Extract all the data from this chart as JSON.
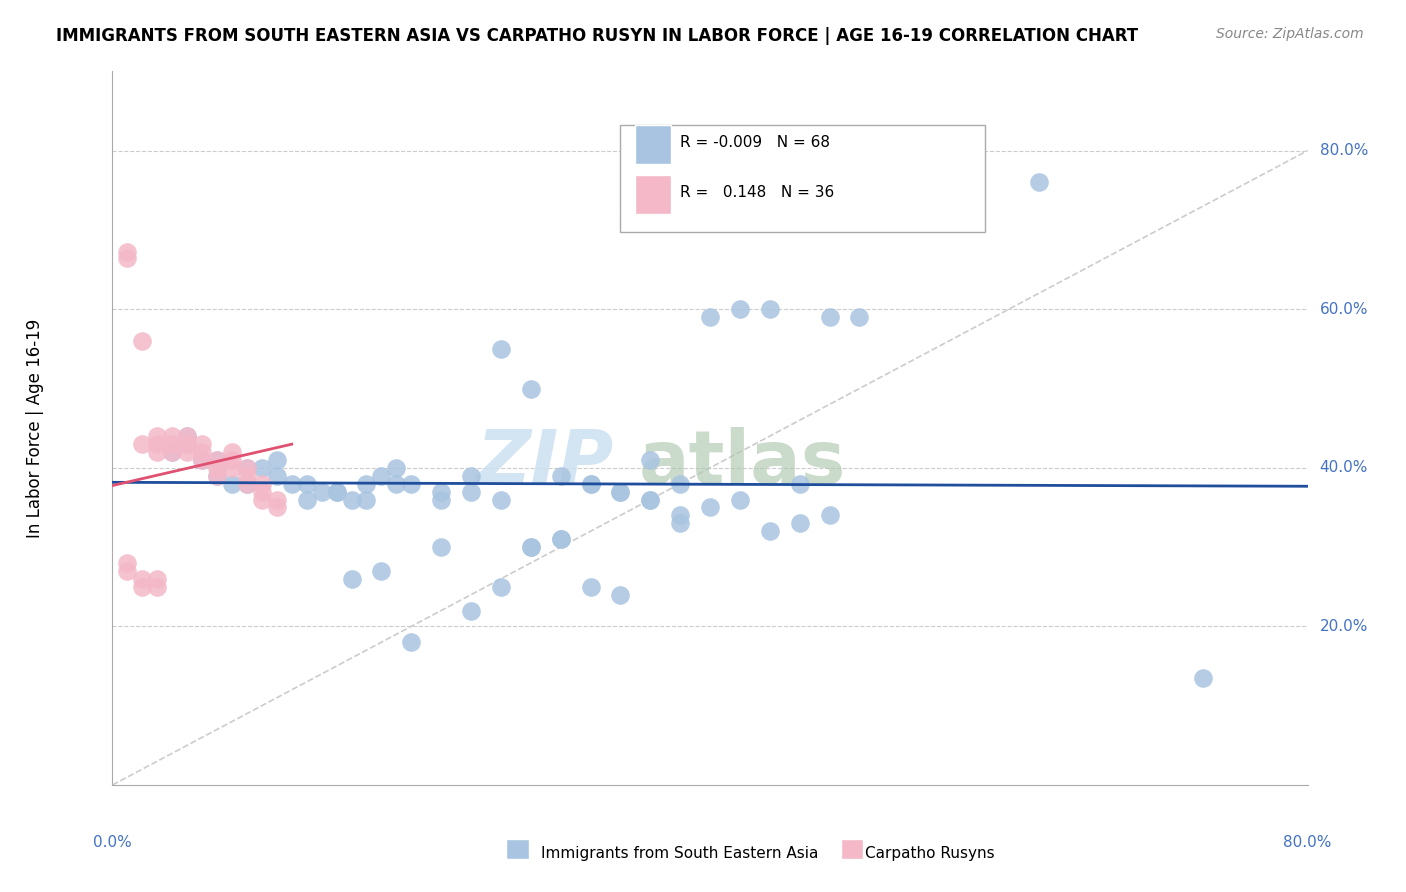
{
  "title": "IMMIGRANTS FROM SOUTH EASTERN ASIA VS CARPATHO RUSYN IN LABOR FORCE | AGE 16-19 CORRELATION CHART",
  "source": "Source: ZipAtlas.com",
  "ylabel": "In Labor Force | Age 16-19",
  "xlim": [
    0.0,
    0.8
  ],
  "ylim": [
    0.0,
    0.9
  ],
  "blue_color": "#a8c4e0",
  "blue_line_color": "#1f4e9c",
  "pink_color": "#f4b8c8",
  "pink_line_color": "#e05070",
  "diagonal_color": "#cccccc",
  "watermark_zip": "ZIP",
  "watermark_atlas": "atlas",
  "blue_x": [
    0.62,
    0.73,
    0.04,
    0.05,
    0.06,
    0.07,
    0.08,
    0.09,
    0.1,
    0.11,
    0.12,
    0.13,
    0.14,
    0.15,
    0.16,
    0.17,
    0.18,
    0.19,
    0.05,
    0.07,
    0.09,
    0.11,
    0.13,
    0.15,
    0.17,
    0.19,
    0.2,
    0.22,
    0.24,
    0.26,
    0.28,
    0.3,
    0.32,
    0.34,
    0.36,
    0.38,
    0.4,
    0.42,
    0.44,
    0.46,
    0.48,
    0.5,
    0.22,
    0.24,
    0.26,
    0.28,
    0.3,
    0.32,
    0.34,
    0.36,
    0.38,
    0.4,
    0.42,
    0.44,
    0.46,
    0.48,
    0.16,
    0.18,
    0.2,
    0.22,
    0.24,
    0.26,
    0.28,
    0.3,
    0.32,
    0.34,
    0.36,
    0.38
  ],
  "blue_y": [
    0.76,
    0.135,
    0.42,
    0.44,
    0.41,
    0.39,
    0.38,
    0.38,
    0.4,
    0.41,
    0.38,
    0.36,
    0.37,
    0.37,
    0.36,
    0.38,
    0.39,
    0.4,
    0.43,
    0.41,
    0.4,
    0.39,
    0.38,
    0.37,
    0.36,
    0.38,
    0.38,
    0.37,
    0.39,
    0.55,
    0.5,
    0.39,
    0.38,
    0.37,
    0.36,
    0.34,
    0.59,
    0.6,
    0.6,
    0.38,
    0.59,
    0.59,
    0.36,
    0.37,
    0.36,
    0.3,
    0.31,
    0.38,
    0.37,
    0.36,
    0.33,
    0.35,
    0.36,
    0.32,
    0.33,
    0.34,
    0.26,
    0.27,
    0.18,
    0.3,
    0.22,
    0.25,
    0.3,
    0.31,
    0.25,
    0.24,
    0.41,
    0.38
  ],
  "pink_x": [
    0.01,
    0.01,
    0.02,
    0.02,
    0.03,
    0.03,
    0.03,
    0.04,
    0.04,
    0.04,
    0.05,
    0.05,
    0.05,
    0.06,
    0.06,
    0.06,
    0.07,
    0.07,
    0.07,
    0.08,
    0.08,
    0.08,
    0.09,
    0.09,
    0.09,
    0.1,
    0.1,
    0.1,
    0.11,
    0.11,
    0.01,
    0.01,
    0.02,
    0.02,
    0.03,
    0.03
  ],
  "pink_y": [
    0.665,
    0.672,
    0.56,
    0.43,
    0.44,
    0.43,
    0.42,
    0.44,
    0.43,
    0.42,
    0.42,
    0.44,
    0.43,
    0.43,
    0.42,
    0.41,
    0.41,
    0.4,
    0.39,
    0.42,
    0.41,
    0.4,
    0.4,
    0.39,
    0.38,
    0.38,
    0.37,
    0.36,
    0.36,
    0.35,
    0.28,
    0.27,
    0.26,
    0.25,
    0.26,
    0.25
  ],
  "ytick_values": [
    0.2,
    0.4,
    0.6,
    0.8
  ],
  "ytick_labels": [
    "20.0%",
    "40.0%",
    "60.0%",
    "80.0%"
  ],
  "legend_r_blue": "-0.009",
  "legend_n_blue": "68",
  "legend_r_pink": "0.148",
  "legend_n_pink": "36",
  "label_blue": "Immigrants from South Eastern Asia",
  "label_pink": "Carpatho Rusyns"
}
